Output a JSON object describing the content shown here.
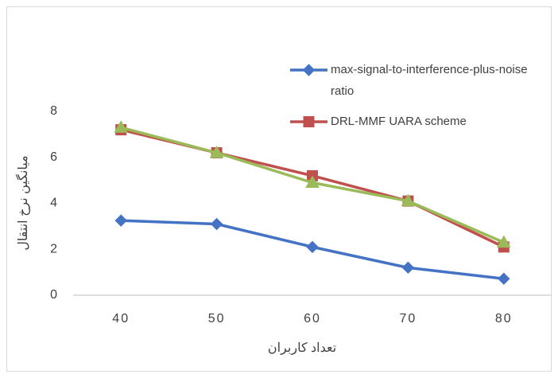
{
  "chart_data": {
    "type": "line",
    "x_label": "تعداد کاربران",
    "y_label": "میانگین نرخ انتقال",
    "categories": [
      "40",
      "50",
      "60",
      "70",
      "80"
    ],
    "series": [
      {
        "name": "max-signal-to-interference-plus-noise ratio",
        "color": "#4472c4",
        "marker": "diamond",
        "values": [
          3.25,
          3.1,
          2.1,
          1.2,
          0.72
        ]
      },
      {
        "name": "DRL-MMF UARA scheme",
        "color": "#c0504d",
        "marker": "square",
        "values": [
          7.2,
          6.2,
          5.2,
          4.1,
          2.1
        ]
      },
      {
        "color": "#9bbb59",
        "marker": "triangle",
        "values": [
          7.3,
          6.2,
          4.9,
          4.1,
          2.3
        ]
      }
    ],
    "ylim": [
      0,
      8
    ],
    "yticks": [
      0,
      2,
      4,
      6,
      8
    ],
    "grid": false
  }
}
